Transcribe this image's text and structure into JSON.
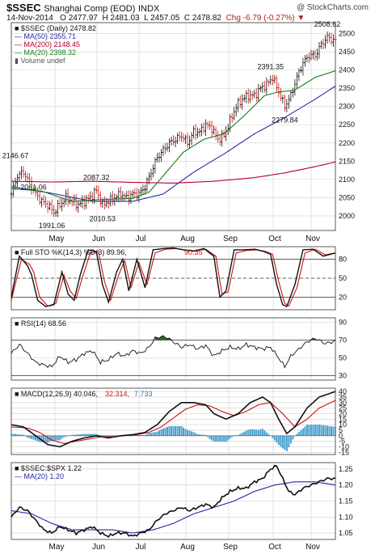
{
  "header": {
    "ticker": "$SSEC",
    "name": "Shanghai Comp (EOD)",
    "exchange": "INDX",
    "watermark": "@ StockCharts.com",
    "date": "14-Nov-2014",
    "open": "O 2477.97",
    "high": "H 2481.03",
    "low": "L 2457.05",
    "close": "C 2478.82",
    "change": "Chg -6.79 (-0.27%)"
  },
  "colors": {
    "up": "#111111",
    "down": "#cc1111",
    "ma50": "#2828a0",
    "ma200": "#b00030",
    "ma20": "#1a7a1a",
    "grid": "#d0d0d0",
    "panel_border": "#333333",
    "hist": "#4aa0d0",
    "rsi_fill": "#2a6a2a"
  },
  "chart_data": [
    {
      "type": "line",
      "panel": "price",
      "legend": {
        "l1": "$SSEC (Daily) 2478.82",
        "l2": "MA(50) 2355.71",
        "l3": "MA(200) 2148.45",
        "l4": "MA(20) 2398.32",
        "l5": "Volume undef"
      },
      "ylim": [
        1960,
        2530
      ],
      "yticks": [
        2000,
        2050,
        2100,
        2150,
        2200,
        2250,
        2300,
        2350,
        2400,
        2450,
        2500
      ],
      "months": [
        "May",
        "Jun",
        "Jul",
        "Aug",
        "Sep",
        "Oct",
        "Nov"
      ],
      "annotations": [
        {
          "label": "2146.67",
          "day": 2,
          "value": 2147
        },
        {
          "label": "2061.06",
          "day": 11,
          "value": 2061
        },
        {
          "label": "1991.06",
          "day": 20,
          "value": 1991
        },
        {
          "label": "2087.32",
          "day": 42,
          "value": 2087
        },
        {
          "label": "2010.53",
          "day": 45,
          "value": 2010
        },
        {
          "label": "2391.35",
          "day": 128,
          "value": 2391
        },
        {
          "label": "2279.84",
          "day": 135,
          "value": 2280
        },
        {
          "label": "2508.62",
          "day": 156,
          "value": 2508
        }
      ],
      "close_anchors": [
        [
          0,
          2060
        ],
        [
          3,
          2110
        ],
        [
          6,
          2120
        ],
        [
          9,
          2090
        ],
        [
          12,
          2060
        ],
        [
          15,
          2040
        ],
        [
          18,
          2030
        ],
        [
          21,
          2010
        ],
        [
          24,
          2030
        ],
        [
          27,
          2050
        ],
        [
          30,
          2040
        ],
        [
          33,
          2030
        ],
        [
          36,
          2040
        ],
        [
          39,
          2050
        ],
        [
          42,
          2070
        ],
        [
          45,
          2030
        ],
        [
          48,
          2040
        ],
        [
          51,
          2050
        ],
        [
          54,
          2060
        ],
        [
          57,
          2050
        ],
        [
          60,
          2060
        ],
        [
          63,
          2060
        ],
        [
          66,
          2080
        ],
        [
          69,
          2120
        ],
        [
          72,
          2160
        ],
        [
          75,
          2180
        ],
        [
          78,
          2200
        ],
        [
          81,
          2210
        ],
        [
          84,
          2220
        ],
        [
          87,
          2200
        ],
        [
          90,
          2230
        ],
        [
          93,
          2230
        ],
        [
          96,
          2250
        ],
        [
          99,
          2240
        ],
        [
          102,
          2210
        ],
        [
          105,
          2220
        ],
        [
          108,
          2260
        ],
        [
          111,
          2300
        ],
        [
          114,
          2320
        ],
        [
          117,
          2330
        ],
        [
          120,
          2330
        ],
        [
          123,
          2350
        ],
        [
          126,
          2360
        ],
        [
          129,
          2380
        ],
        [
          132,
          2340
        ],
        [
          135,
          2300
        ],
        [
          138,
          2330
        ],
        [
          141,
          2380
        ],
        [
          144,
          2420
        ],
        [
          147,
          2440
        ],
        [
          150,
          2440
        ],
        [
          153,
          2470
        ],
        [
          156,
          2490
        ],
        [
          160,
          2479
        ]
      ],
      "ma50_anchors": [
        [
          0,
          2080
        ],
        [
          20,
          2062
        ],
        [
          40,
          2040
        ],
        [
          60,
          2040
        ],
        [
          75,
          2060
        ],
        [
          90,
          2120
        ],
        [
          105,
          2170
        ],
        [
          120,
          2225
        ],
        [
          135,
          2270
        ],
        [
          150,
          2320
        ],
        [
          160,
          2356
        ]
      ],
      "ma200_anchors": [
        [
          0,
          2095
        ],
        [
          20,
          2093
        ],
        [
          40,
          2095
        ],
        [
          60,
          2092
        ],
        [
          80,
          2090
        ],
        [
          100,
          2095
        ],
        [
          120,
          2105
        ],
        [
          135,
          2118
        ],
        [
          150,
          2135
        ],
        [
          160,
          2148
        ]
      ],
      "ma20_anchors": [
        [
          0,
          2075
        ],
        [
          15,
          2068
        ],
        [
          30,
          2040
        ],
        [
          45,
          2045
        ],
        [
          60,
          2048
        ],
        [
          68,
          2065
        ],
        [
          75,
          2110
        ],
        [
          85,
          2175
        ],
        [
          95,
          2210
        ],
        [
          105,
          2225
        ],
        [
          115,
          2275
        ],
        [
          125,
          2330
        ],
        [
          132,
          2340
        ],
        [
          140,
          2345
        ],
        [
          150,
          2380
        ],
        [
          160,
          2398
        ]
      ]
    },
    {
      "type": "line",
      "panel": "stochastic",
      "legend": {
        "l1": "Full STO %K(14,3) %D(3) 89.96,",
        "l2": "90.35"
      },
      "ylim": [
        0,
        100
      ],
      "yticks": [
        20,
        50,
        80
      ],
      "k_anchors": [
        [
          0,
          20
        ],
        [
          4,
          85
        ],
        [
          8,
          70
        ],
        [
          10,
          55
        ],
        [
          13,
          15
        ],
        [
          17,
          5
        ],
        [
          21,
          8
        ],
        [
          25,
          60
        ],
        [
          28,
          25
        ],
        [
          31,
          15
        ],
        [
          34,
          55
        ],
        [
          38,
          95
        ],
        [
          42,
          92
        ],
        [
          45,
          40
        ],
        [
          48,
          12
        ],
        [
          52,
          60
        ],
        [
          55,
          80
        ],
        [
          58,
          30
        ],
        [
          62,
          80
        ],
        [
          66,
          35
        ],
        [
          70,
          95
        ],
        [
          75,
          97
        ],
        [
          80,
          98
        ],
        [
          85,
          95
        ],
        [
          90,
          93
        ],
        [
          95,
          97
        ],
        [
          100,
          85
        ],
        [
          103,
          20
        ],
        [
          106,
          30
        ],
        [
          110,
          95
        ],
        [
          115,
          95
        ],
        [
          120,
          96
        ],
        [
          124,
          93
        ],
        [
          128,
          88
        ],
        [
          131,
          40
        ],
        [
          134,
          8
        ],
        [
          136,
          5
        ],
        [
          140,
          40
        ],
        [
          144,
          95
        ],
        [
          149,
          96
        ],
        [
          154,
          85
        ],
        [
          160,
          90
        ]
      ],
      "d_anchors": [
        [
          0,
          15
        ],
        [
          5,
          80
        ],
        [
          9,
          72
        ],
        [
          11,
          60
        ],
        [
          14,
          20
        ],
        [
          18,
          6
        ],
        [
          22,
          10
        ],
        [
          26,
          55
        ],
        [
          29,
          30
        ],
        [
          32,
          18
        ],
        [
          35,
          50
        ],
        [
          39,
          90
        ],
        [
          43,
          92
        ],
        [
          46,
          45
        ],
        [
          49,
          15
        ],
        [
          53,
          55
        ],
        [
          56,
          78
        ],
        [
          59,
          35
        ],
        [
          63,
          75
        ],
        [
          67,
          40
        ],
        [
          71,
          90
        ],
        [
          76,
          96
        ],
        [
          81,
          97
        ],
        [
          86,
          95
        ],
        [
          91,
          93
        ],
        [
          96,
          96
        ],
        [
          101,
          85
        ],
        [
          104,
          25
        ],
        [
          107,
          28
        ],
        [
          111,
          90
        ],
        [
          116,
          94
        ],
        [
          121,
          95
        ],
        [
          125,
          93
        ],
        [
          129,
          88
        ],
        [
          132,
          45
        ],
        [
          135,
          10
        ],
        [
          137,
          6
        ],
        [
          141,
          35
        ],
        [
          145,
          90
        ],
        [
          150,
          96
        ],
        [
          155,
          87
        ],
        [
          160,
          90
        ]
      ]
    },
    {
      "type": "line",
      "panel": "rsi",
      "legend": {
        "l1": "RSI(14) 68.56"
      },
      "ylim": [
        25,
        95
      ],
      "yticks": [
        30,
        50,
        70,
        90
      ],
      "anchors": [
        [
          0,
          55
        ],
        [
          4,
          65
        ],
        [
          8,
          55
        ],
        [
          12,
          45
        ],
        [
          16,
          42
        ],
        [
          20,
          40
        ],
        [
          24,
          52
        ],
        [
          28,
          45
        ],
        [
          32,
          48
        ],
        [
          36,
          55
        ],
        [
          40,
          58
        ],
        [
          44,
          45
        ],
        [
          48,
          48
        ],
        [
          52,
          55
        ],
        [
          56,
          52
        ],
        [
          60,
          58
        ],
        [
          64,
          55
        ],
        [
          68,
          62
        ],
        [
          71,
          72
        ],
        [
          74,
          74
        ],
        [
          77,
          73
        ],
        [
          80,
          68
        ],
        [
          84,
          62
        ],
        [
          88,
          65
        ],
        [
          92,
          60
        ],
        [
          96,
          64
        ],
        [
          100,
          52
        ],
        [
          104,
          58
        ],
        [
          108,
          62
        ],
        [
          112,
          60
        ],
        [
          116,
          65
        ],
        [
          120,
          62
        ],
        [
          124,
          60
        ],
        [
          128,
          62
        ],
        [
          132,
          50
        ],
        [
          135,
          40
        ],
        [
          138,
          52
        ],
        [
          142,
          60
        ],
        [
          146,
          68
        ],
        [
          150,
          72
        ],
        [
          155,
          66
        ],
        [
          160,
          69
        ]
      ]
    },
    {
      "type": "line",
      "panel": "macd",
      "legend": {
        "l1": "MACD(12,26,9) 40.046,",
        "l2": "32.314,",
        "l3": "7.733"
      },
      "ylim": [
        -17,
        43
      ],
      "yticks": [
        -15,
        -10,
        -5,
        0,
        5,
        10,
        15,
        20,
        25,
        30,
        35,
        40
      ],
      "macd_anchors": [
        [
          0,
          10
        ],
        [
          6,
          8
        ],
        [
          12,
          0
        ],
        [
          18,
          -8
        ],
        [
          24,
          -10
        ],
        [
          30,
          -5
        ],
        [
          36,
          -2
        ],
        [
          42,
          0
        ],
        [
          48,
          -2
        ],
        [
          54,
          0
        ],
        [
          60,
          1
        ],
        [
          66,
          3
        ],
        [
          72,
          10
        ],
        [
          78,
          22
        ],
        [
          84,
          30
        ],
        [
          90,
          30
        ],
        [
          96,
          28
        ],
        [
          100,
          20
        ],
        [
          106,
          15
        ],
        [
          112,
          20
        ],
        [
          118,
          30
        ],
        [
          124,
          35
        ],
        [
          128,
          30
        ],
        [
          132,
          15
        ],
        [
          136,
          2
        ],
        [
          140,
          8
        ],
        [
          146,
          25
        ],
        [
          152,
          35
        ],
        [
          160,
          40
        ]
      ],
      "signal_anchors": [
        [
          0,
          8
        ],
        [
          8,
          7
        ],
        [
          14,
          3
        ],
        [
          20,
          -4
        ],
        [
          26,
          -7
        ],
        [
          32,
          -5
        ],
        [
          38,
          -3
        ],
        [
          44,
          -1
        ],
        [
          50,
          -1
        ],
        [
          56,
          0
        ],
        [
          62,
          1
        ],
        [
          68,
          3
        ],
        [
          74,
          8
        ],
        [
          80,
          16
        ],
        [
          86,
          24
        ],
        [
          92,
          28
        ],
        [
          98,
          27
        ],
        [
          104,
          22
        ],
        [
          110,
          18
        ],
        [
          116,
          22
        ],
        [
          122,
          28
        ],
        [
          128,
          30
        ],
        [
          134,
          20
        ],
        [
          140,
          8
        ],
        [
          146,
          15
        ],
        [
          152,
          25
        ],
        [
          160,
          32
        ]
      ]
    },
    {
      "type": "line",
      "panel": "ratio",
      "legend": {
        "l1": "$SSEC:$SPX 1.22",
        "l2": "MA(20) 1.20"
      },
      "ylim": [
        1.03,
        1.27
      ],
      "yticks": [
        1.05,
        1.1,
        1.15,
        1.2,
        1.25
      ],
      "ratio_anchors": [
        [
          0,
          1.1
        ],
        [
          4,
          1.13
        ],
        [
          8,
          1.12
        ],
        [
          12,
          1.09
        ],
        [
          16,
          1.06
        ],
        [
          20,
          1.05
        ],
        [
          24,
          1.07
        ],
        [
          28,
          1.06
        ],
        [
          32,
          1.05
        ],
        [
          36,
          1.06
        ],
        [
          40,
          1.07
        ],
        [
          44,
          1.05
        ],
        [
          48,
          1.04
        ],
        [
          52,
          1.05
        ],
        [
          56,
          1.05
        ],
        [
          60,
          1.04
        ],
        [
          64,
          1.05
        ],
        [
          68,
          1.06
        ],
        [
          72,
          1.09
        ],
        [
          76,
          1.11
        ],
        [
          80,
          1.12
        ],
        [
          84,
          1.13
        ],
        [
          88,
          1.12
        ],
        [
          92,
          1.13
        ],
        [
          96,
          1.14
        ],
        [
          100,
          1.13
        ],
        [
          104,
          1.16
        ],
        [
          108,
          1.18
        ],
        [
          112,
          1.19
        ],
        [
          116,
          1.19
        ],
        [
          120,
          1.21
        ],
        [
          124,
          1.22
        ],
        [
          128,
          1.25
        ],
        [
          131,
          1.26
        ],
        [
          134,
          1.22
        ],
        [
          137,
          1.18
        ],
        [
          140,
          1.17
        ],
        [
          144,
          1.19
        ],
        [
          148,
          1.2
        ],
        [
          152,
          1.21
        ],
        [
          156,
          1.22
        ],
        [
          160,
          1.22
        ]
      ],
      "ma_anchors": [
        [
          0,
          1.12
        ],
        [
          10,
          1.11
        ],
        [
          20,
          1.08
        ],
        [
          30,
          1.06
        ],
        [
          40,
          1.06
        ],
        [
          50,
          1.06
        ],
        [
          60,
          1.05
        ],
        [
          70,
          1.06
        ],
        [
          80,
          1.08
        ],
        [
          90,
          1.11
        ],
        [
          100,
          1.13
        ],
        [
          110,
          1.15
        ],
        [
          120,
          1.18
        ],
        [
          130,
          1.2
        ],
        [
          140,
          1.21
        ],
        [
          150,
          1.21
        ],
        [
          160,
          1.2
        ]
      ]
    }
  ]
}
